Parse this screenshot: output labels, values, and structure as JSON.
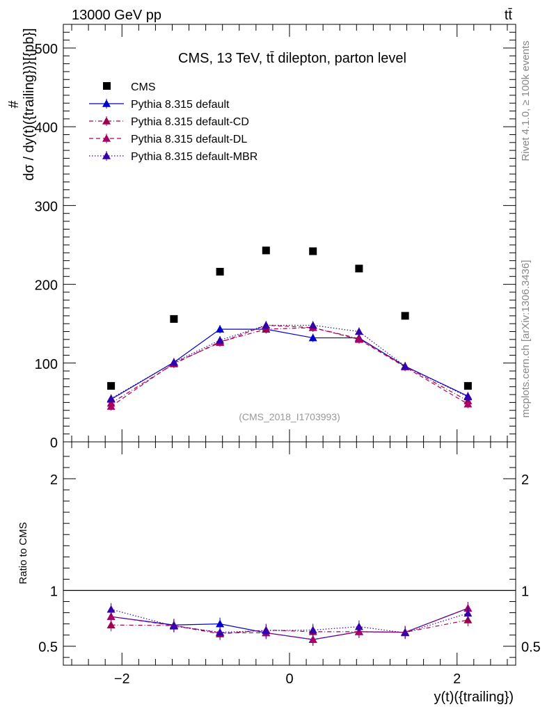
{
  "header": {
    "energy_label": "13000 GeV pp",
    "process_label": "tt̄"
  },
  "side_labels": {
    "rivet": "Rivet 4.1.0, ≥ 100k events",
    "source": "mcplots.cern.ch [arXiv:1306.3436]"
  },
  "colors": {
    "cms": "#000000",
    "default": "#0000cc",
    "cd": "#a0004a",
    "dl": "#aa0066",
    "mbr": "#3300aa",
    "annotation": "#999999",
    "side": "#888888"
  },
  "chart_data": [
    {
      "type": "scatter",
      "title": "CMS, 13 TeV, tt̄ dilepton, parton level",
      "ylabel": "#dσ/dy(t)({trailing})}[{pb}]",
      "xlabel": "y(t)({trailing})",
      "annotation": "(CMS_2018_I1703993)",
      "xlim": [
        -2.7,
        2.7
      ],
      "ylim": [
        0,
        530
      ],
      "yticks": [
        0,
        100,
        200,
        300,
        400,
        500
      ],
      "xticks": [
        -2,
        0,
        2
      ],
      "x": [
        -2.13,
        -1.38,
        -0.83,
        -0.28,
        0.28,
        0.83,
        1.38,
        2.13
      ],
      "series": [
        {
          "name": "CMS",
          "style": "marker",
          "values": [
            71,
            156,
            216,
            243,
            242,
            220,
            160,
            71
          ]
        },
        {
          "name": "Pythia 8.315 default",
          "style": "solid",
          "values": [
            54,
            101,
            143,
            143,
            132,
            132,
            96,
            58
          ]
        },
        {
          "name": "Pythia 8.315 default-CD",
          "style": "dashdot",
          "values": [
            49,
            99,
            127,
            143,
            145,
            131,
            96,
            52
          ]
        },
        {
          "name": "Pythia 8.315 default-DL",
          "style": "dashed",
          "values": [
            45,
            100,
            126,
            148,
            145,
            130,
            95,
            48
          ]
        },
        {
          "name": "Pythia 8.315 default-MBR",
          "style": "dotted",
          "values": [
            55,
            101,
            129,
            148,
            148,
            140,
            96,
            57
          ]
        }
      ]
    },
    {
      "type": "scatter",
      "ylabel": "Ratio to CMS",
      "xlabel": "y(t)({trailing})",
      "xlim": [
        -2.7,
        2.7
      ],
      "ylim": [
        0.33,
        2.33
      ],
      "yticks": [
        0.5,
        1,
        2
      ],
      "ytick_labels": [
        "0.5",
        "1",
        "2"
      ],
      "xticks": [
        -2,
        0,
        2
      ],
      "xtick_labels": [
        "−2",
        "0",
        "2"
      ],
      "x": [
        -2.13,
        -1.38,
        -0.83,
        -0.28,
        0.28,
        0.83,
        1.38,
        2.13
      ],
      "series": [
        {
          "name": "Pythia 8.315 default",
          "style": "solid",
          "values": [
            0.765,
            0.69,
            0.7,
            0.62,
            0.56,
            0.63,
            0.625,
            0.84
          ]
        },
        {
          "name": "Pythia 8.315 default-CD",
          "style": "dashdot",
          "values": [
            0.69,
            0.685,
            0.61,
            0.645,
            0.63,
            0.63,
            0.625,
            0.735
          ]
        },
        {
          "name": "Pythia 8.315 default-DL",
          "style": "dashed",
          "values": [
            0.765,
            0.685,
            0.62,
            0.62,
            0.56,
            0.63,
            0.625,
            0.84
          ]
        },
        {
          "name": "Pythia 8.315 default-MBR",
          "style": "dotted",
          "values": [
            0.83,
            0.68,
            0.625,
            0.64,
            0.645,
            0.675,
            0.62,
            0.795
          ]
        }
      ]
    }
  ]
}
